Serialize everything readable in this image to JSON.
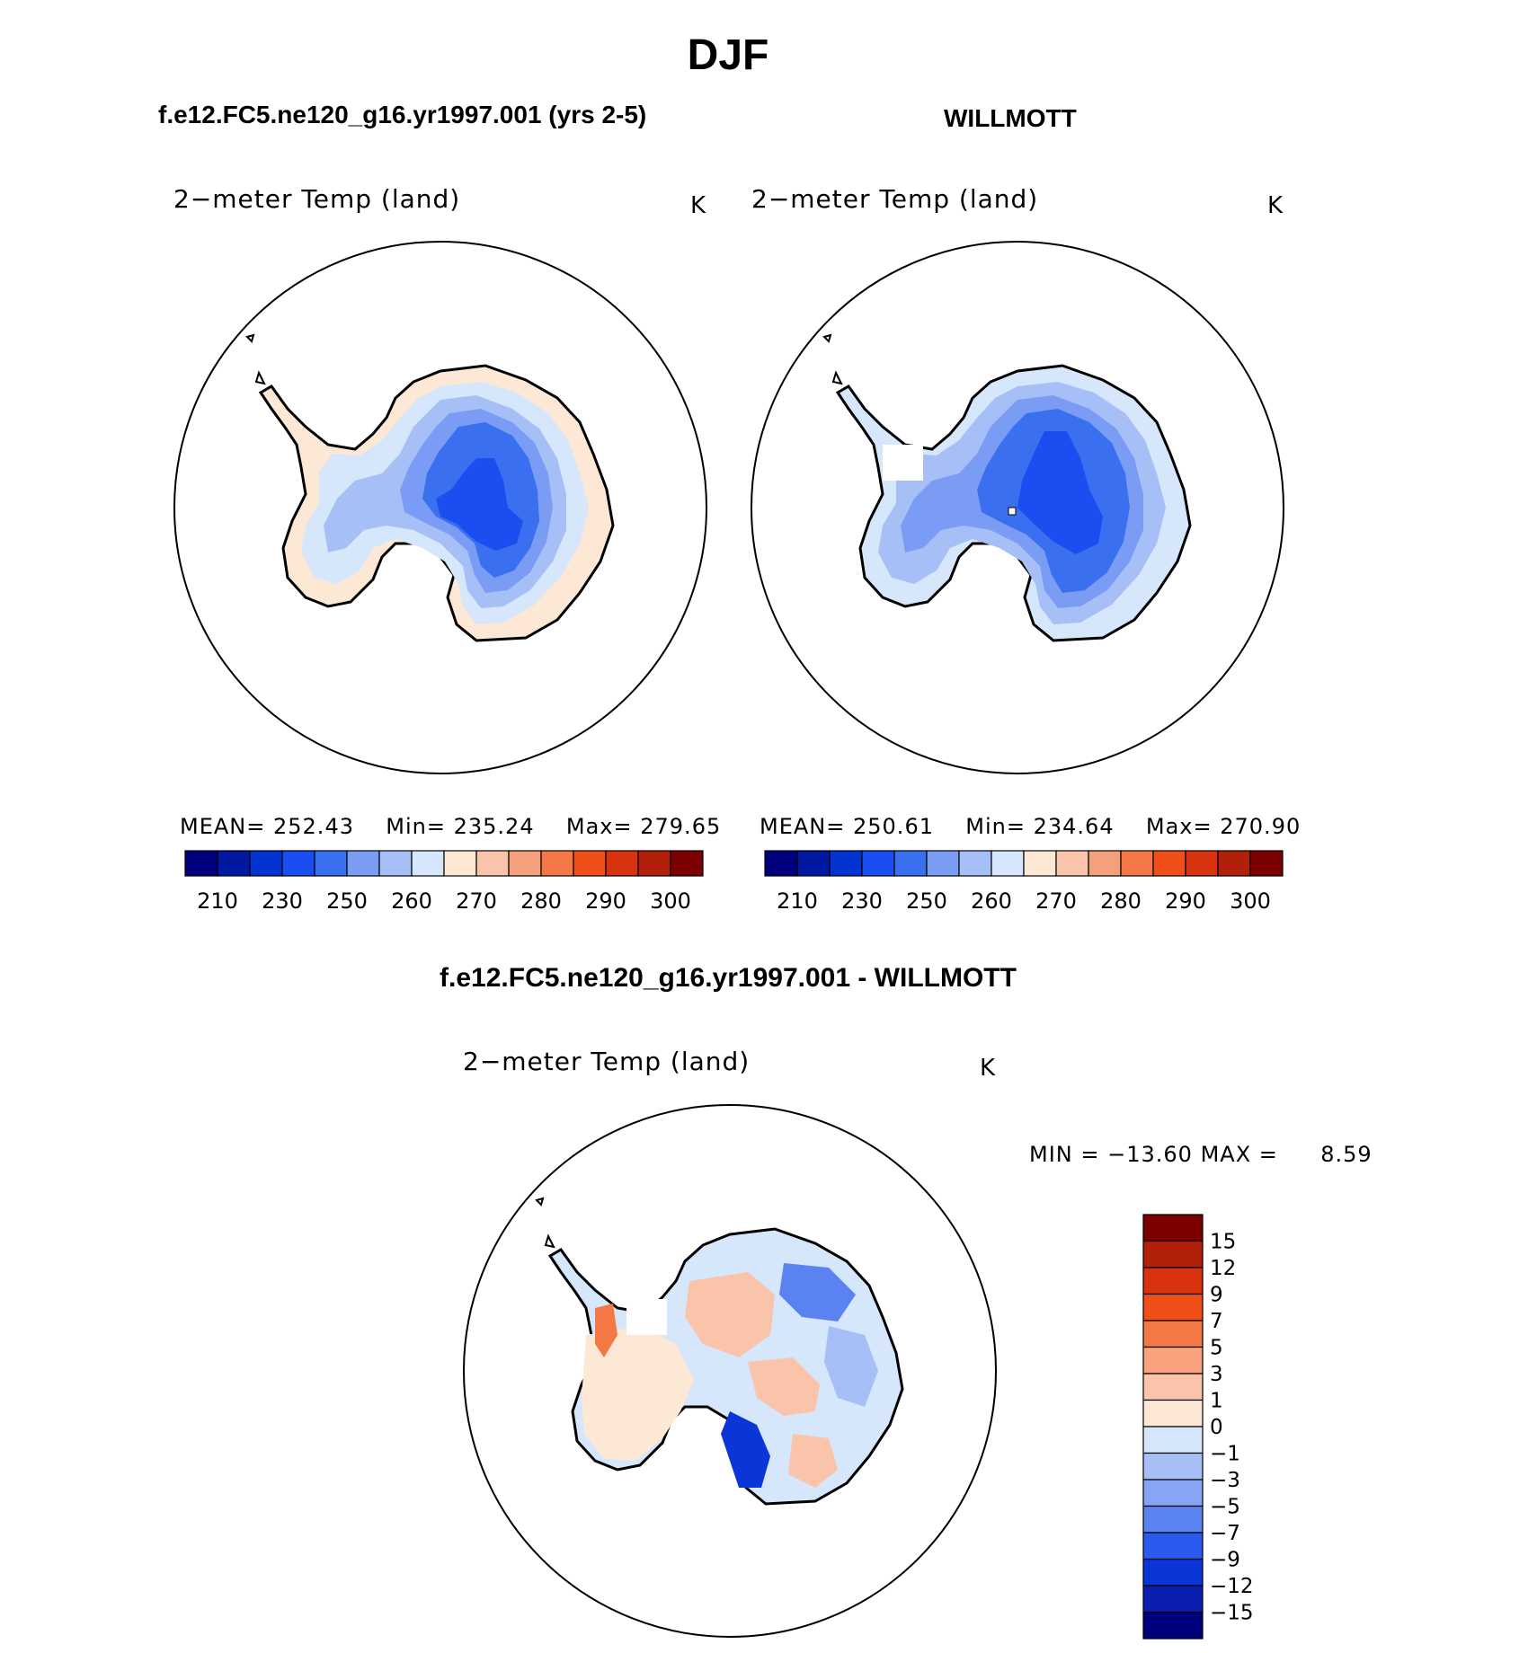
{
  "page_title": "DJF",
  "panels": [
    {
      "case_title": "f.e12.FC5.ne120_g16.yr1997.001 (yrs 2-5)",
      "variable": "2−meter Temp (land)",
      "units": "K",
      "stats": {
        "mean_label": "MEAN=",
        "mean": "252.43",
        "min_label": "Min=",
        "min": "235.24",
        "max_label": "Max=",
        "max": "279.65"
      }
    },
    {
      "case_title": "WILLMOTT",
      "variable": "2−meter Temp (land)",
      "units": "K",
      "stats": {
        "mean_label": "MEAN=",
        "mean": "250.61",
        "min_label": "Min=",
        "min": "234.64",
        "max_label": "Max=",
        "max": "270.90"
      }
    }
  ],
  "abs_colorbar": {
    "colors": [
      "#00007d",
      "#0019a0",
      "#0033cf",
      "#1a4ef0",
      "#3a6ff0",
      "#7a9cf5",
      "#a6c0f7",
      "#d6e6fb",
      "#fde8d6",
      "#f9c4a9",
      "#f4a07c",
      "#f47846",
      "#f04f1a",
      "#d9320e",
      "#b3200a",
      "#7d0000"
    ],
    "labels": [
      "210",
      "230",
      "250",
      "260",
      "270",
      "280",
      "290",
      "300"
    ]
  },
  "diff_panel": {
    "case_title": "f.e12.FC5.ne120_g16.yr1997.001 - WILLMOTT",
    "variable": "2−meter Temp (land)",
    "units": "K",
    "min_label": "MIN =",
    "min": "−13.60",
    "max_label": "MAX =",
    "max": "8.59"
  },
  "diff_colorbar": {
    "colors_top_to_bottom": [
      "#7d0000",
      "#b3200a",
      "#d9320e",
      "#f04f1a",
      "#f47846",
      "#f9a27e",
      "#f9c4a9",
      "#fde8d6",
      "#d6e6fb",
      "#a6c0f7",
      "#86a6f5",
      "#5a82f0",
      "#2a5af0",
      "#0a36d8",
      "#0a1fb0",
      "#00007d"
    ],
    "labels": [
      "15",
      "12",
      "9",
      "7",
      "5",
      "3",
      "1",
      "0",
      "−1",
      "−3",
      "−5",
      "−7",
      "−9",
      "−12",
      "−15"
    ]
  },
  "map_fill": {
    "coast": "#000000",
    "mean_panel1": [
      "#fde8d6",
      "#d6e6fb",
      "#a6c0f7",
      "#7a9cf5",
      "#3a6ff0",
      "#1a4ef0"
    ],
    "mean_panel2": [
      "#fde8d6",
      "#d6e6fb",
      "#a6c0f7",
      "#7a9cf5",
      "#3a6ff0",
      "#1a4ef0"
    ],
    "diff": [
      "#f9c4a9",
      "#fde8d6",
      "#d6e6fb",
      "#a6c0f7",
      "#5a82f0",
      "#0a36d8"
    ]
  }
}
